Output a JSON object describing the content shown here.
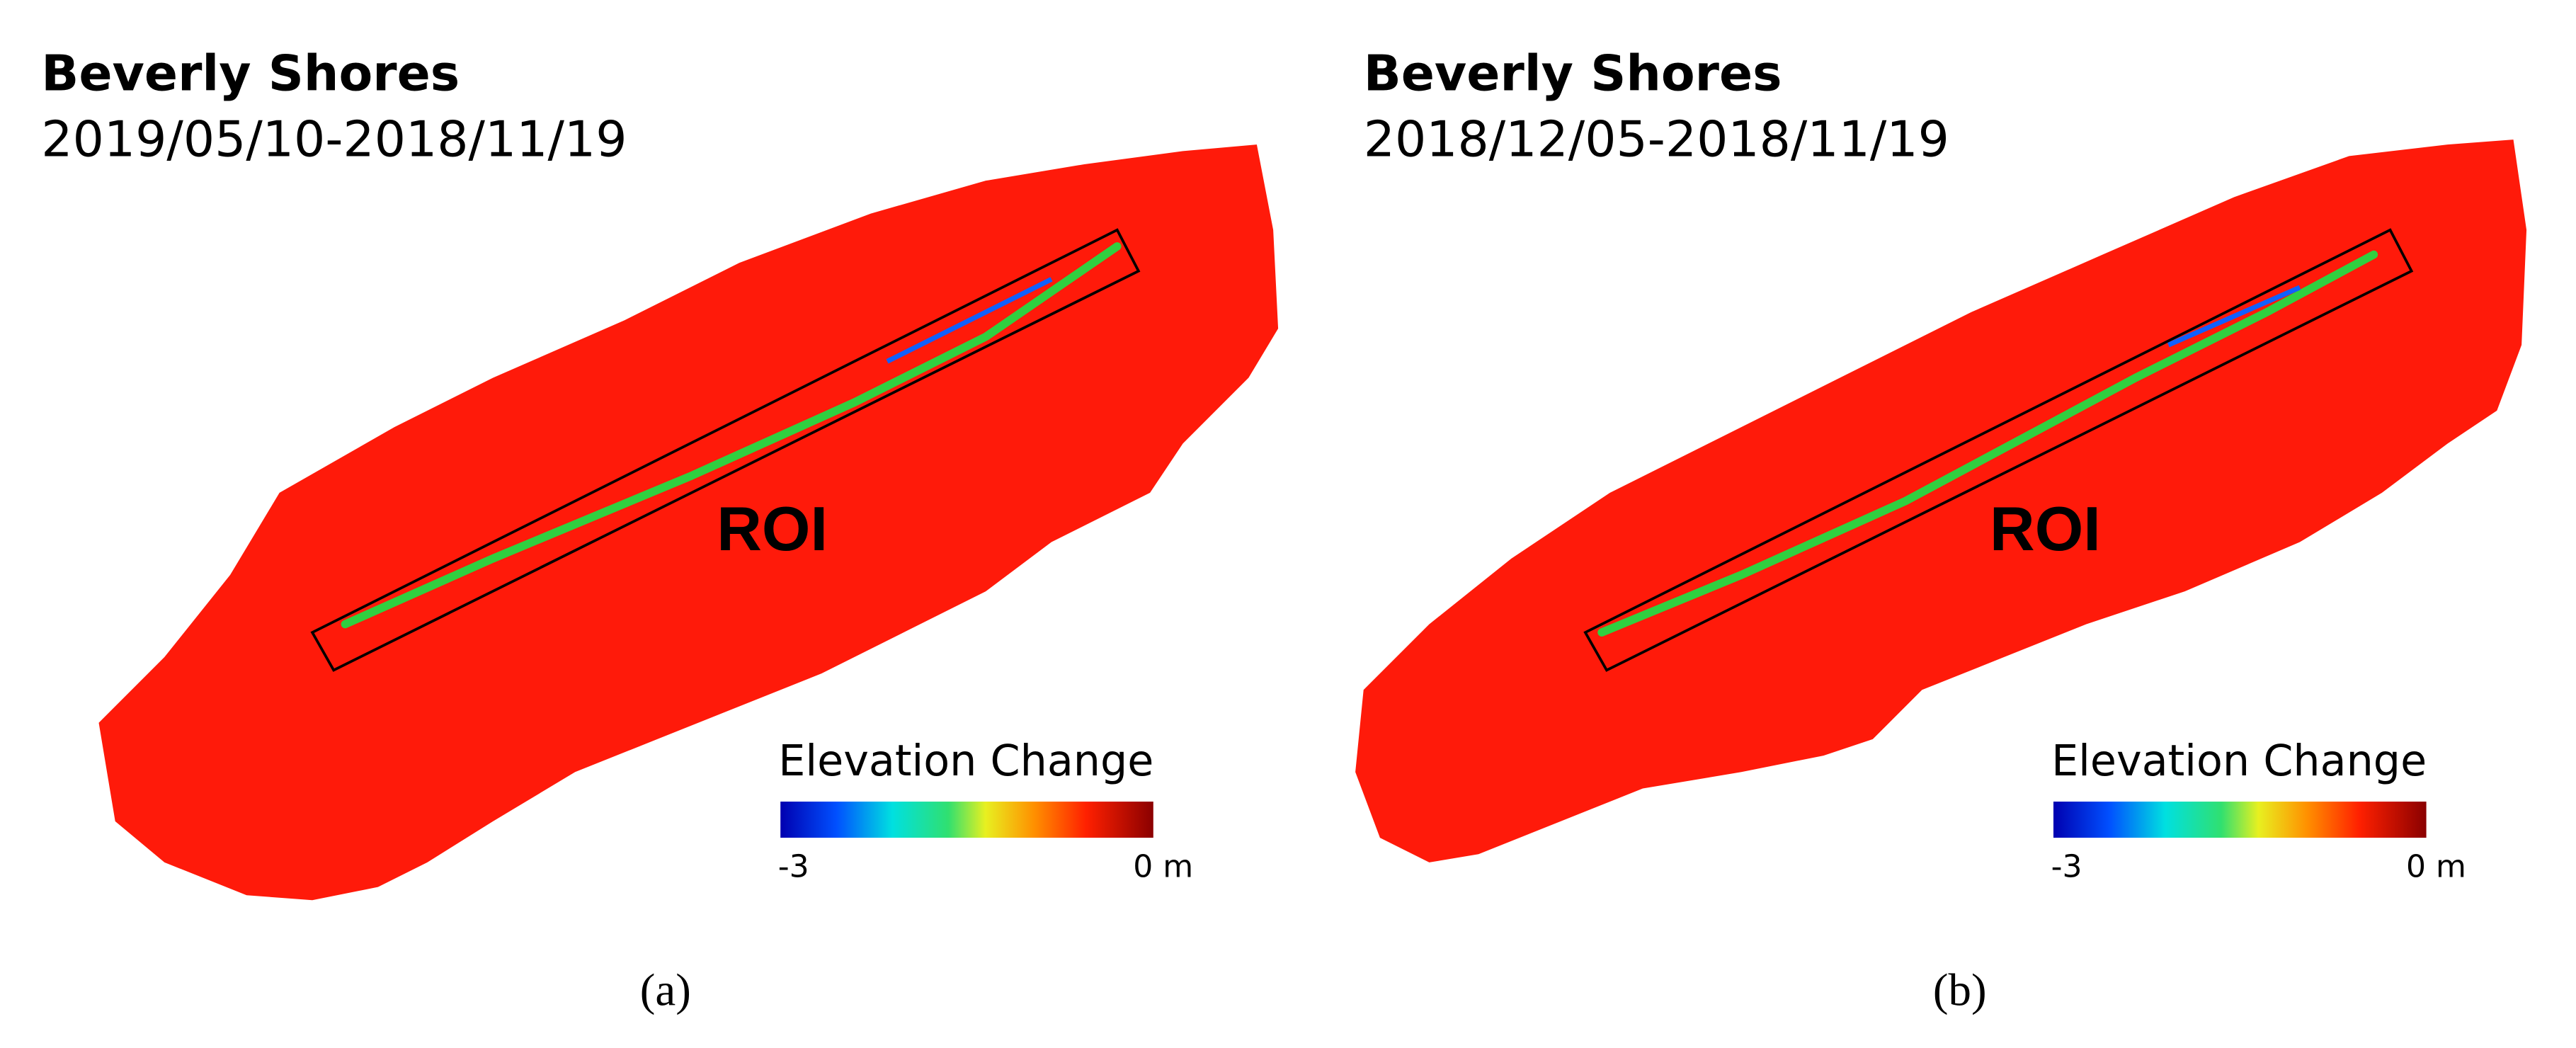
{
  "panels": [
    {
      "title": "Beverly Shores",
      "subtitle": "2019/05/10-2018/11/19",
      "roi_label": "ROI",
      "legend": {
        "title": "Elevation Change",
        "min_label": "-3",
        "max_label": "0 m"
      },
      "caption": "(a)"
    },
    {
      "title": "Beverly Shores",
      "subtitle": "2018/12/05-2018/11/19",
      "roi_label": "ROI",
      "legend": {
        "title": "Elevation Change",
        "min_label": "-3",
        "max_label": "0 m"
      },
      "caption": "(b)"
    }
  ]
}
